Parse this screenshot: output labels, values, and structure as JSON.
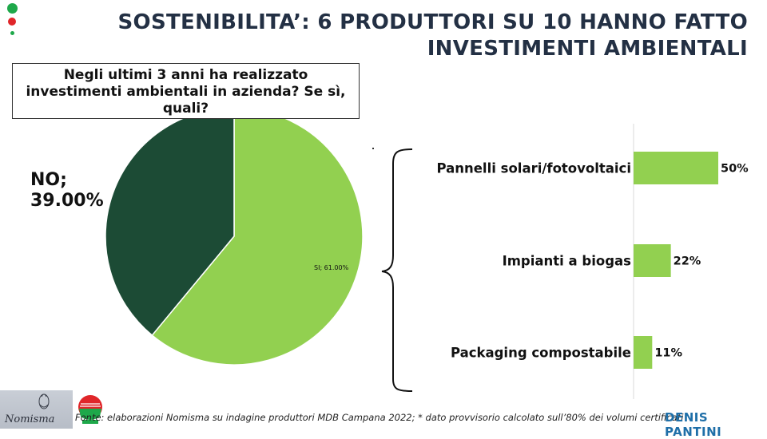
{
  "title": "SOSTENIBILITA’: 6 PRODUTTORI SU 10 HANNO FATTO INVESTIMENTI AMBIENTALI",
  "question": "Negli ultimi 3 anni ha realizzato investimenti ambientali in azienda? Se sì, quali?",
  "colors": {
    "dark_green": "#1c4b35",
    "light_green": "#92d050",
    "title": "#233044",
    "brand_blue": "#1f6fa8",
    "dot_green": "#1ea84a",
    "dot_red": "#e0262a"
  },
  "chart_data": [
    {
      "type": "pie",
      "slices": [
        {
          "label": "NO",
          "value": 39.0,
          "display": "NO; 39.00%"
        },
        {
          "label": "SI",
          "value": 61.0,
          "display": "SI; 61.00%"
        }
      ]
    },
    {
      "type": "bar",
      "orientation": "horizontal",
      "categories": [
        "Pannelli solari/fotovoltaici",
        "Impianti a biogas",
        "Packaging compostabile"
      ],
      "values": [
        50,
        22,
        11
      ],
      "data_labels": [
        "50%",
        "22%",
        "11%"
      ]
    }
  ],
  "footer": {
    "source": "Fonte: elaborazioni Nomisma su indagine produttori MDB Campana 2022; * dato provvisorio calcolato sull’80% dei volumi certificati",
    "brand": "DENIS PANTINI",
    "nomisma_logo_icon": "nomisma-logo",
    "mdb_logo_icon": "mdb-campana-logo"
  }
}
